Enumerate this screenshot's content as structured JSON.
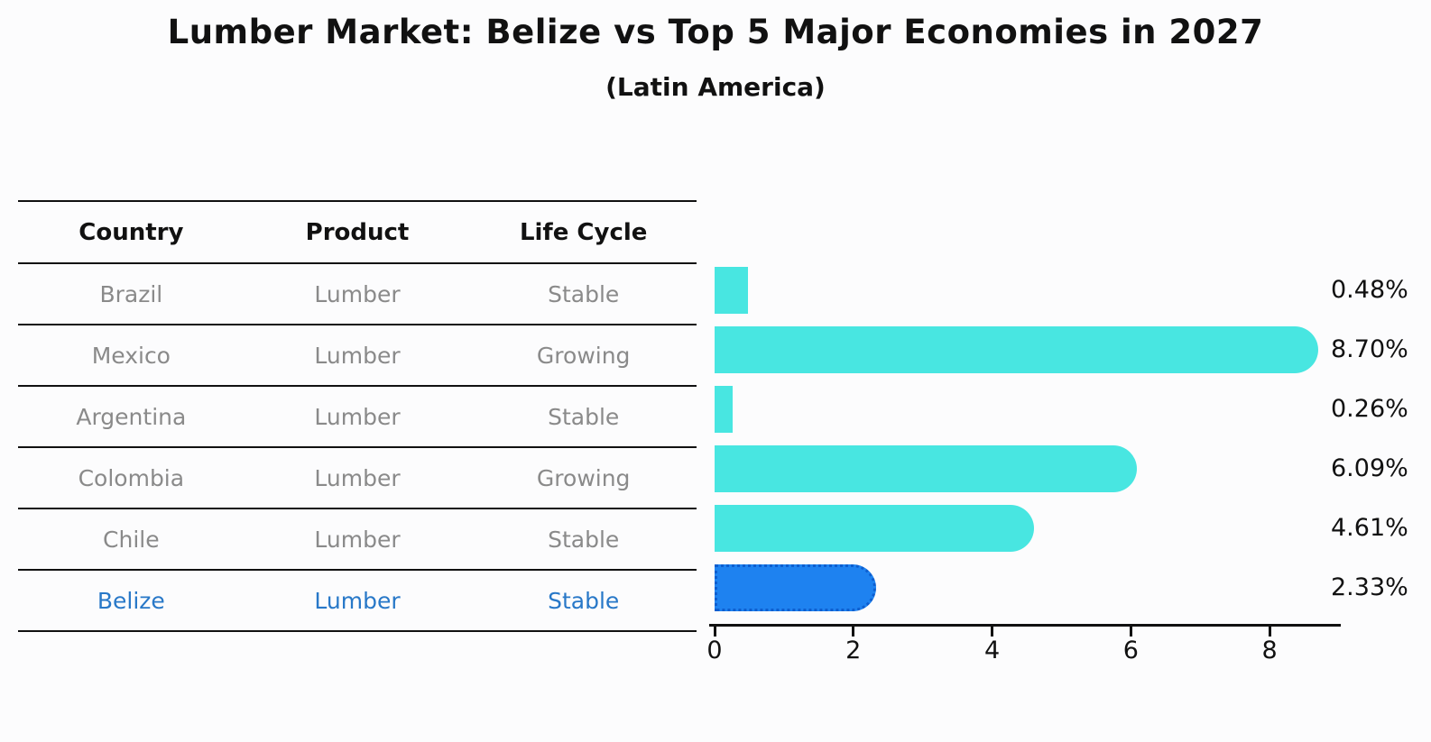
{
  "title": "Lumber Market: Belize vs Top 5 Major Economies in 2027",
  "subtitle": "(Latin America)",
  "table": {
    "headers": [
      "Country",
      "Product",
      "Life Cycle"
    ],
    "rows": [
      {
        "country": "Brazil",
        "product": "Lumber",
        "life_cycle": "Stable",
        "value": 0.48,
        "label": "0.48%",
        "highlight": false
      },
      {
        "country": "Mexico",
        "product": "Lumber",
        "life_cycle": "Growing",
        "value": 8.7,
        "label": "8.70%",
        "highlight": false
      },
      {
        "country": "Argentina",
        "product": "Lumber",
        "life_cycle": "Stable",
        "value": 0.26,
        "label": "0.26%",
        "highlight": false
      },
      {
        "country": "Colombia",
        "product": "Lumber",
        "life_cycle": "Growing",
        "value": 6.09,
        "label": "6.09%",
        "highlight": false
      },
      {
        "country": "Chile",
        "product": "Lumber",
        "life_cycle": "Stable",
        "value": 4.61,
        "label": "4.61%",
        "highlight": false
      },
      {
        "country": "Belize",
        "product": "Lumber",
        "life_cycle": "Stable",
        "value": 2.33,
        "label": "2.33%",
        "highlight": true
      }
    ]
  },
  "chart_data": {
    "type": "bar",
    "orientation": "horizontal",
    "title": "Lumber Market: Belize vs Top 5 Major Economies in 2027",
    "subtitle": "(Latin America)",
    "categories": [
      "Brazil",
      "Mexico",
      "Argentina",
      "Colombia",
      "Chile",
      "Belize"
    ],
    "values": [
      0.48,
      8.7,
      0.26,
      6.09,
      4.61,
      2.33
    ],
    "value_labels": [
      "0.48%",
      "8.70%",
      "0.26%",
      "6.09%",
      "4.61%",
      "2.33%"
    ],
    "xlabel": "",
    "ylabel": "",
    "xticks": [
      0,
      2,
      4,
      6,
      8
    ],
    "xlim": [
      0,
      9.0
    ],
    "grid": false,
    "legend": false,
    "bar_color": "#48e6e1",
    "highlight_color": "#1e82f0",
    "highlight_border_color": "#0d5ecf",
    "highlight_index": 5,
    "highlight_style": "dotted-border"
  },
  "colors": {
    "background": "#fcfcfd",
    "text_primary": "#111111",
    "text_muted": "#8a8a8a",
    "highlight_text": "#2878c8",
    "table_rule": "#111111"
  }
}
